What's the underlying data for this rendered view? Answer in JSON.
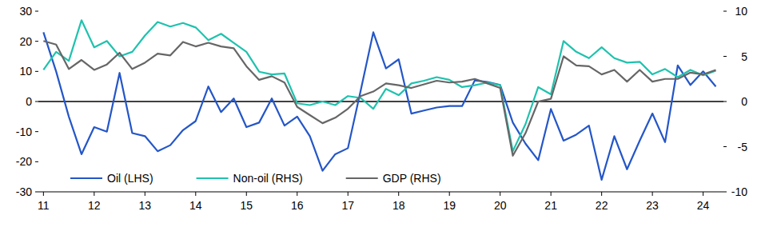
{
  "chart_data": {
    "type": "line",
    "x": [
      2011,
      2011.25,
      2011.5,
      2011.75,
      2012,
      2012.25,
      2012.5,
      2012.75,
      2013,
      2013.25,
      2013.5,
      2013.75,
      2014,
      2014.25,
      2014.5,
      2014.75,
      2015,
      2015.25,
      2015.5,
      2015.75,
      2016,
      2016.25,
      2016.5,
      2016.75,
      2017,
      2017.25,
      2017.5,
      2017.75,
      2018,
      2018.25,
      2018.5,
      2018.75,
      2019,
      2019.25,
      2019.5,
      2019.75,
      2020,
      2020.25,
      2020.5,
      2020.75,
      2021,
      2021.25,
      2021.5,
      2021.75,
      2022,
      2022.25,
      2022.5,
      2022.75,
      2023,
      2023.25,
      2023.5,
      2023.75,
      2024,
      2024.25
    ],
    "series": [
      {
        "name": "Oil (LHS)",
        "color": "#2456c8",
        "values": [
          23,
          10,
          -5,
          -17.5,
          -8.5,
          -10,
          9.5,
          -10.5,
          -11.5,
          -16.5,
          -14.5,
          -9.5,
          -6.5,
          5,
          -3.5,
          1,
          -8.5,
          -7,
          1,
          -8,
          -5,
          -11.5,
          -23,
          -17.5,
          -15.5,
          3.5,
          23,
          11,
          14,
          -4,
          -3,
          -2,
          -1.5,
          -1.5,
          7,
          6.5,
          5.5,
          -7,
          -14,
          -19.5,
          -2.5,
          -13,
          -11,
          -8,
          -26,
          -11.5,
          -22.5,
          -13,
          -4,
          -13.5,
          12,
          5.5,
          10,
          5
        ]
      },
      {
        "name": "Non-oil (RHS)",
        "color": "#1fc2ae",
        "axis": "y2",
        "values": [
          3.5,
          5.5,
          4.5,
          9,
          6,
          6.7,
          5,
          5.5,
          7.3,
          8.8,
          8.3,
          8.7,
          8.2,
          6.8,
          7.5,
          6.5,
          5.5,
          3.3,
          3,
          3.1,
          -0.2,
          -0.4,
          0,
          -0.4,
          0.6,
          0.4,
          -0.8,
          1.4,
          0.7,
          2,
          2.3,
          2.7,
          2.4,
          1.6,
          1.8,
          2.1,
          1.8,
          -5.5,
          -2.5,
          1.6,
          0.8,
          6.7,
          5.5,
          4.8,
          6,
          4.8,
          4.3,
          4.4,
          3,
          3.6,
          2.7,
          3.5,
          2.9,
          3.4
        ]
      },
      {
        "name": "GDP (RHS)",
        "color": "#666666",
        "axis": "y2",
        "values": [
          6.7,
          6.3,
          3.6,
          4.6,
          3.5,
          4.1,
          5.4,
          3.6,
          4.3,
          5.3,
          5.1,
          6.6,
          6.1,
          6.5,
          6.1,
          5.9,
          3.9,
          2.4,
          2.8,
          2.1,
          -0.6,
          -1.5,
          -2.4,
          -1.8,
          -0.8,
          0.6,
          1.1,
          2,
          1.8,
          1.5,
          1.9,
          2.3,
          2.1,
          2.2,
          2.5,
          2,
          1.5,
          -6,
          -3.5,
          0,
          0.3,
          5,
          4,
          3.9,
          3,
          3.5,
          2.2,
          3.5,
          2.2,
          2.5,
          2.5,
          3.2,
          3,
          3.5
        ]
      }
    ],
    "xlim": [
      2010.9,
      2024.4
    ],
    "xticks": [
      {
        "value": 2011,
        "label": "11"
      },
      {
        "value": 2012,
        "label": "12"
      },
      {
        "value": 2013,
        "label": "13"
      },
      {
        "value": 2014,
        "label": "14"
      },
      {
        "value": 2015,
        "label": "15"
      },
      {
        "value": 2016,
        "label": "16"
      },
      {
        "value": 2017,
        "label": "17"
      },
      {
        "value": 2018,
        "label": "18"
      },
      {
        "value": 2019,
        "label": "19"
      },
      {
        "value": 2020,
        "label": "20"
      },
      {
        "value": 2021,
        "label": "21"
      },
      {
        "value": 2022,
        "label": "22"
      },
      {
        "value": 2023,
        "label": "23"
      },
      {
        "value": 2024,
        "label": "24"
      }
    ],
    "ylim": [
      -30,
      30
    ],
    "yticks": [
      -30,
      -20,
      -10,
      0,
      10,
      20,
      30
    ],
    "y2lim": [
      -10,
      10
    ],
    "y2ticks": [
      -10,
      -5,
      0,
      5,
      10
    ],
    "grid": false,
    "legend": "bottom-left"
  }
}
